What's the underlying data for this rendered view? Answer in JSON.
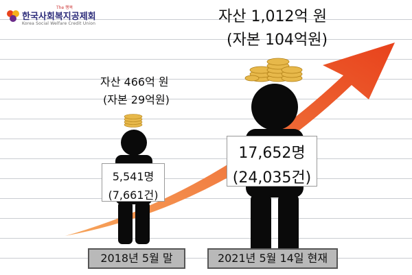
{
  "logo": {
    "name_ko": "한국사회복지공제회",
    "name_en": "Korea Social Welfare Credit Union",
    "small_tag": "The 행복"
  },
  "left": {
    "assets": "자산 466억 원",
    "capital": "(자본 29억원)",
    "members": "5,541명",
    "cases": "(7,661건)",
    "date": "2018년 5월 말"
  },
  "right": {
    "assets": "자산 1,012억 원",
    "capital": "(자본 104억원)",
    "members": "17,652명",
    "cases": "(24,035건)",
    "date": "2021년 5월 14일 현재"
  },
  "colors": {
    "arrow_start": "#f7a55b",
    "arrow_end": "#e8421c",
    "coin": "#e7b84a",
    "date_box": "#b9b9b9"
  }
}
